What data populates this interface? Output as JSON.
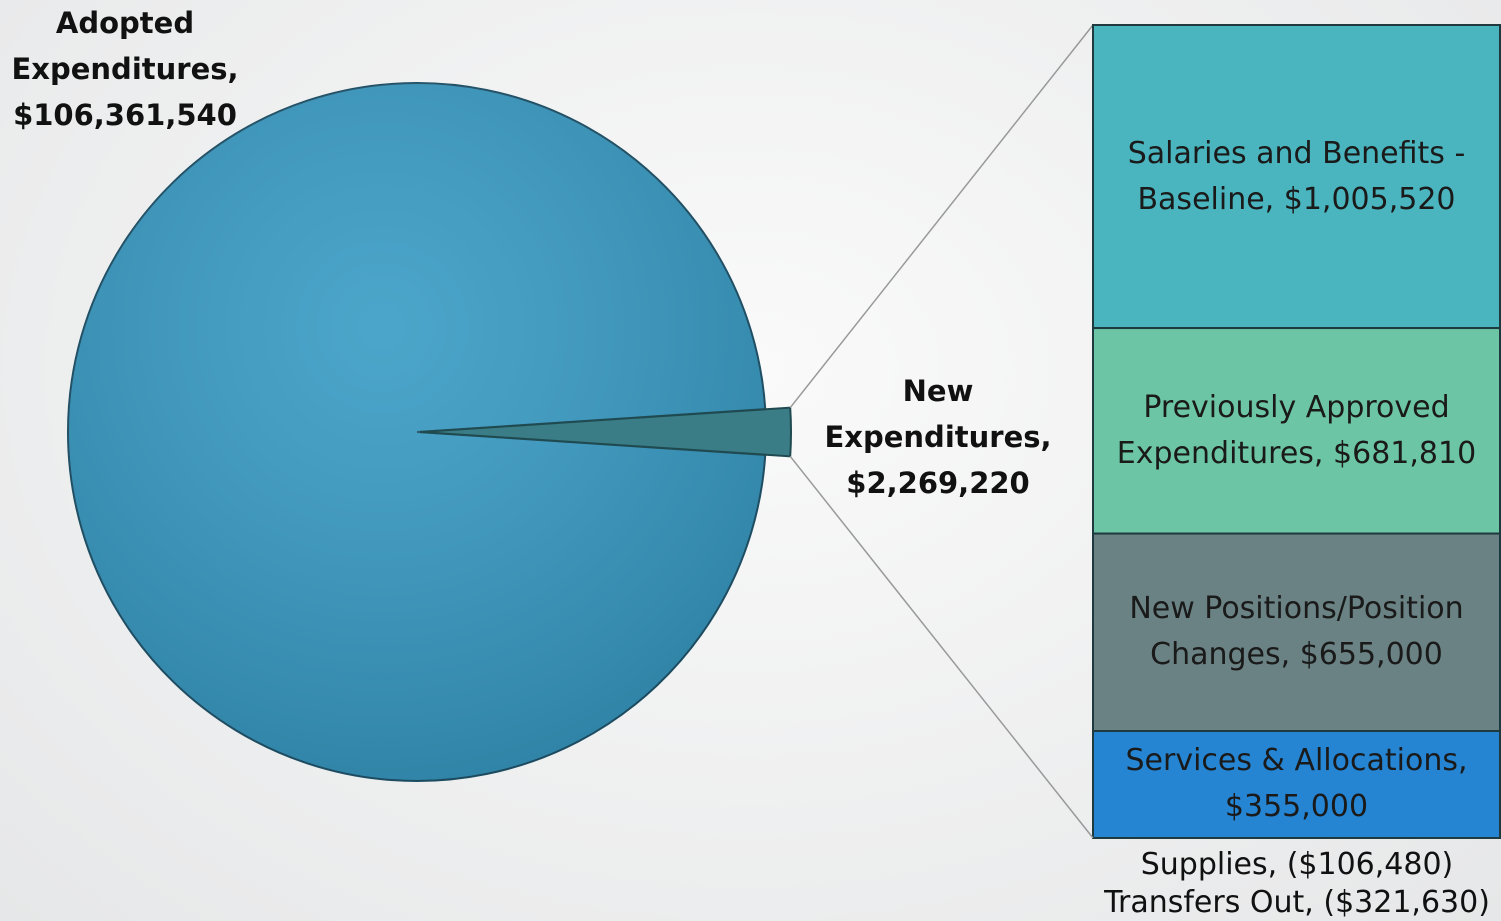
{
  "chart_data": {
    "type": "bar-of-pie",
    "pie": {
      "categories": [
        "Adopted Expenditures,",
        "New Expenditures,"
      ],
      "values": [
        106361540,
        2269220
      ],
      "value_labels": [
        "$106,361,540",
        "$2,269,220"
      ],
      "colors": [
        "#3399c3",
        "#3a7d86"
      ]
    },
    "bar": {
      "categories": [
        "Salaries and Benefits - Baseline,",
        "Previously Approved Expenditures,",
        "New Positions/Position Changes,",
        "Services & Allocations,",
        "Supplies,",
        "Transfers Out,"
      ],
      "values": [
        1005520,
        681810,
        655000,
        355000,
        -106480,
        -321630
      ],
      "value_labels": [
        "$1,005,520",
        "$681,810",
        "$655,000",
        "$355,000",
        "($106,480)",
        "($321,630)"
      ],
      "colors": [
        "#4ab5be",
        "#6cc6a6",
        "#6a8283",
        "#2585d3",
        null,
        null
      ]
    }
  }
}
